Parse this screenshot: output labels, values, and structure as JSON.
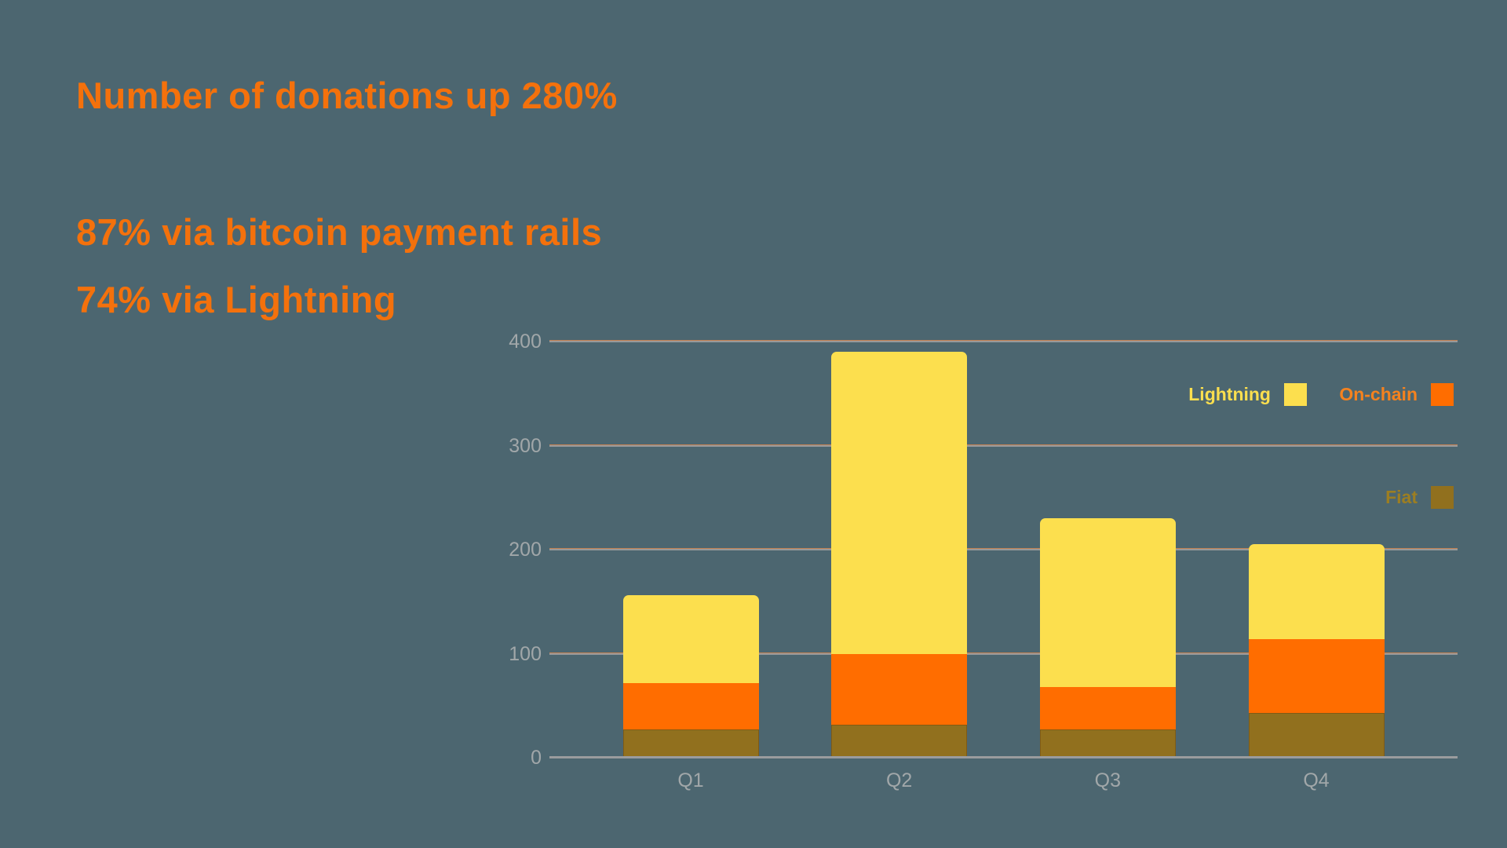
{
  "slide": {
    "background_color": "#4c6670",
    "headline_color": "#f4710c",
    "headline1": "Number of donations up 280%",
    "headline2": "87% via bitcoin payment rails",
    "headline3": "74% via Lightning"
  },
  "chart_data": {
    "type": "bar",
    "stacked": true,
    "title": "",
    "categories": [
      "Q1",
      "Q2",
      "Q3",
      "Q4"
    ],
    "series": [
      {
        "name": "Fiat",
        "color": "#91701e",
        "label_color": "#9c7e22",
        "values": [
          27,
          32,
          27,
          43
        ]
      },
      {
        "name": "On-chain",
        "color": "#ff6d00",
        "label_color": "#f5821e",
        "values": [
          45,
          68,
          41,
          71
        ]
      },
      {
        "name": "Lightning",
        "color": "#fcdf4e",
        "label_color": "#fcdf4e",
        "values": [
          84,
          290,
          162,
          91
        ]
      }
    ],
    "stack_order": "bottom-to-top",
    "totals": [
      156,
      390,
      230,
      205
    ],
    "yticks": [
      0,
      100,
      200,
      300,
      400
    ],
    "ylim": [
      0,
      400
    ],
    "grid": true,
    "axis_text_color": "#a1a7a9",
    "grid_color": "#97999b",
    "legend_position": "right"
  }
}
